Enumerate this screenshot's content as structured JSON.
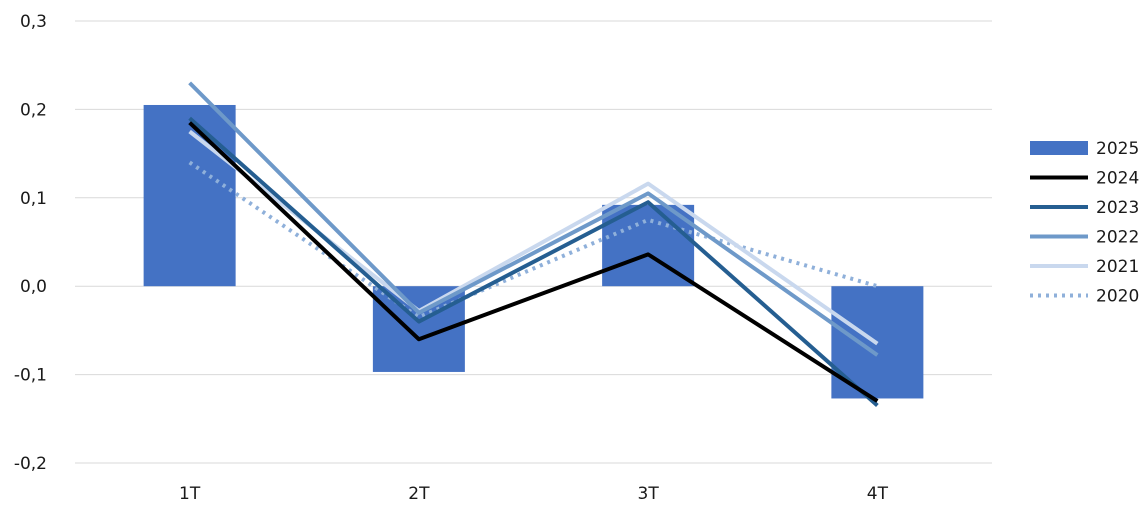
{
  "chart_data": {
    "type": "bar",
    "categories": [
      "1T",
      "2T",
      "3T",
      "4T"
    ],
    "ylim": [
      -0.2,
      0.3
    ],
    "yticks": [
      {
        "value": 0.3,
        "label": "0,3"
      },
      {
        "value": 0.2,
        "label": "0,2"
      },
      {
        "value": 0.1,
        "label": "0,1"
      },
      {
        "value": 0.0,
        "label": "0,0"
      },
      {
        "value": -0.1,
        "label": "-0,1"
      },
      {
        "value": -0.2,
        "label": "-0,2"
      }
    ],
    "grid": true,
    "legend_position": "right",
    "title": "",
    "xlabel": "",
    "ylabel": "",
    "series": [
      {
        "name": "2025",
        "kind": "bar",
        "style": "solid",
        "color": "#4472C4",
        "values": [
          0.205,
          -0.097,
          0.092,
          -0.127
        ]
      },
      {
        "name": "2024",
        "kind": "line",
        "style": "solid",
        "color": "#000000",
        "values": [
          0.185,
          -0.06,
          0.036,
          -0.13
        ]
      },
      {
        "name": "2023",
        "kind": "line",
        "style": "solid",
        "color": "#255E91",
        "values": [
          0.19,
          -0.04,
          0.095,
          -0.135
        ]
      },
      {
        "name": "2022",
        "kind": "line",
        "style": "solid",
        "color": "#6E99C9",
        "values": [
          0.23,
          -0.03,
          0.105,
          -0.078
        ]
      },
      {
        "name": "2021",
        "kind": "line",
        "style": "solid",
        "color": "#C9D8EE",
        "values": [
          0.175,
          -0.028,
          0.116,
          -0.065
        ]
      },
      {
        "name": "2020",
        "kind": "line",
        "style": "dotted",
        "color": "#8FB0DA",
        "values": [
          0.14,
          -0.035,
          0.075,
          0.0
        ]
      }
    ]
  }
}
